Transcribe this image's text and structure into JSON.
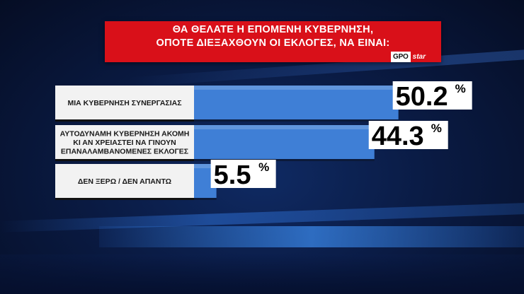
{
  "title": {
    "line1": "ΘΑ ΘΕΛΑΤΕ Η ΕΠΟΜΕΝΗ ΚΥΒΕΡΝΗΣΗ,",
    "line2": "ΟΠΟΤΕ ΔΙΕΞΑΧΘΟΥΝ ΟΙ ΕΚΛΟΓΕΣ, ΝΑ ΕΙΝΑΙ:"
  },
  "source_logo": {
    "part1": "GPO",
    "part2": "star"
  },
  "colors": {
    "title_bg": "#d91019",
    "bar_fill": "#3f7fd6",
    "label_bg": "#f2f2f2",
    "value_bg": "#ffffff",
    "background": "#0a1b44"
  },
  "chart_data": {
    "type": "bar",
    "orientation": "horizontal",
    "title": "ΘΑ ΘΕΛΑΤΕ Η ΕΠΟΜΕΝΗ ΚΥΒΕΡΝΗΣΗ, ΟΠΟΤΕ ΔΙΕΞΑΧΘΟΥΝ ΟΙ ΕΚΛΟΓΕΣ, ΝΑ ΕΙΝΑΙ:",
    "categories": [
      [
        "ΜΙΑ ΚΥΒΕΡΝΗΣΗ ΣΥΝΕΡΓΑΣΙΑΣ"
      ],
      [
        "ΑΥΤΟΔΥΝΑΜΗ ΚΥΒΕΡΝΗΣΗ ΑΚΟΜΗ",
        "ΚΙ ΑΝ ΧΡΕΙΑΣΤΕΙ ΝΑ ΓΙΝΟΥΝ",
        "ΕΠΑΝΑΛΑΜΒΑΝΟΜΕΝΕΣ ΕΚΛΟΓΕΣ"
      ],
      [
        "ΔΕΝ ΞΕΡΩ / ΔΕΝ ΑΠΑΝΤΩ"
      ]
    ],
    "values": [
      50.2,
      44.3,
      5.5
    ],
    "value_labels": [
      "50.2",
      "44.3",
      "5.5"
    ],
    "unit": "%",
    "xlim": [
      0,
      100
    ],
    "grid": false,
    "legend": "none"
  }
}
